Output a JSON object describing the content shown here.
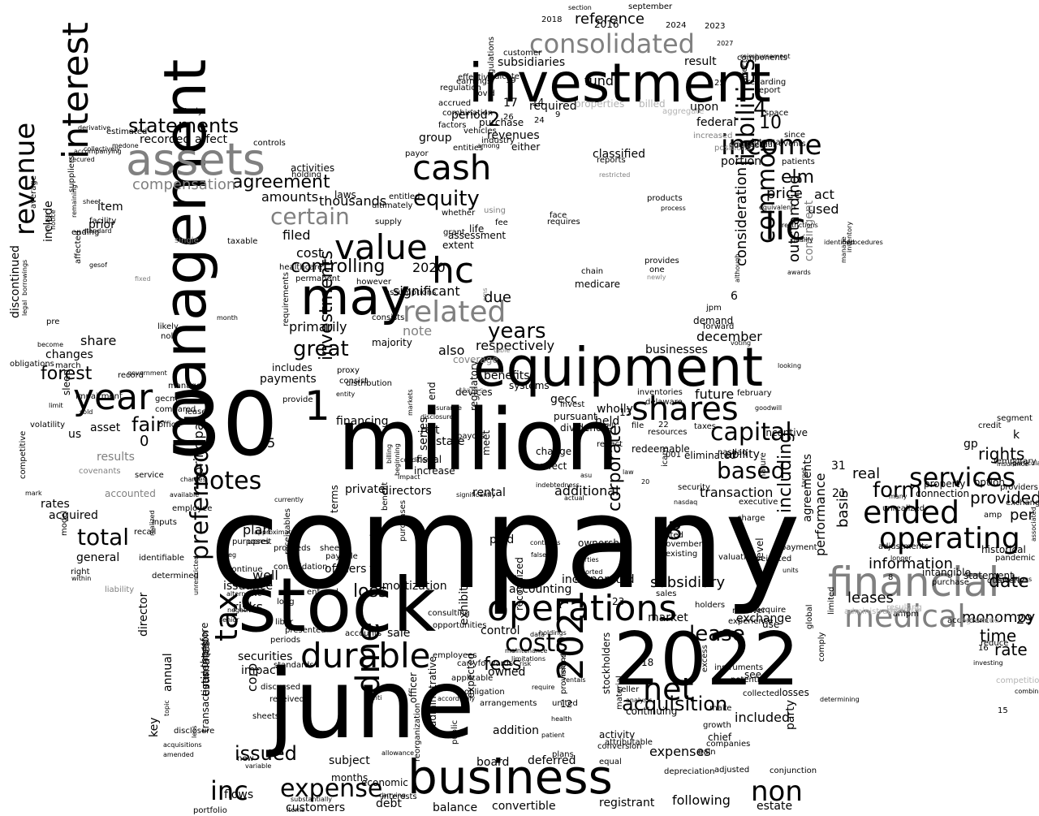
{
  "colors": {
    "background": "#ffffff",
    "primary": "#000000",
    "secondary": "#808080",
    "light": "#b3b3b3"
  },
  "words": [
    "company",
    "june",
    "million",
    "30",
    "2022",
    "stock",
    "management",
    "investment",
    "equipment",
    "business",
    "may",
    "assets",
    "consolidated",
    "financial",
    "medical",
    "operations",
    "durable",
    "cash",
    "value",
    "interest",
    "year",
    "llc",
    "shares",
    "operating",
    "ended",
    "services",
    "net",
    "income",
    "revenue",
    "hc",
    "capital",
    "tax",
    "notes",
    "inc",
    "expense",
    "non",
    "costs",
    "total",
    "related",
    "certain",
    "preferred",
    "equity",
    "liabilities",
    "common",
    "dme",
    "2021",
    "1",
    "3",
    "5",
    "0",
    "2",
    "4",
    "10",
    "statements",
    "agreement",
    "controlling",
    "great",
    "years",
    "fees",
    "lease",
    "acquisition",
    "subsidiary",
    "issued",
    "loss",
    "corp",
    "investments",
    "including",
    "corporate",
    "elm",
    "forest",
    "fair",
    "based",
    "form",
    "information",
    "date",
    "time",
    "rate",
    "monomoy",
    "29",
    "provided",
    "rights",
    "per",
    "leases",
    "real",
    "price",
    "act",
    "used",
    "outstanding",
    "consideration",
    "contingent",
    "amounts",
    "cost",
    "filed",
    "primarily",
    "also",
    "due",
    "significant",
    "note",
    "respectively",
    "december",
    "businesses",
    "future",
    "held",
    "gecc",
    "benefits",
    "reit",
    "state",
    "series",
    "financing",
    "directors",
    "rental",
    "private",
    "additional",
    "transaction",
    "ability",
    "performance",
    "basis",
    "agreements",
    "included",
    "expenses",
    "following",
    "estate",
    "balance",
    "board",
    "deferred",
    "convertible",
    "registrant",
    "customers",
    "debt",
    "subject",
    "addition",
    "flows",
    "securities",
    "impact",
    "risks",
    "issuance",
    "plan",
    "well",
    "principal",
    "acquired",
    "rates",
    "general",
    "results",
    "asset",
    "us",
    "payments",
    "includes",
    "changes",
    "share",
    "discontinued",
    "include",
    "item",
    "prior",
    "recorded",
    "affect",
    "thousands",
    "2020",
    "laws",
    "group",
    "revenues",
    "period",
    "required",
    "upon",
    "federal",
    "portion",
    "reference",
    "subsidiaries",
    "result",
    "september",
    "section",
    "incorporated",
    "market",
    "exchange",
    "use",
    "see",
    "losses",
    "party",
    "activity",
    "continuing",
    "stockholders",
    "accounting",
    "amortization",
    "sale",
    "control",
    "owned",
    "accounts",
    "employees",
    "exhibit",
    "recognized",
    "paid",
    "ownership",
    "effect",
    "change",
    "dividends",
    "pursuant",
    "wholly",
    "redeemable",
    "dated",
    "existing",
    "valuation",
    "incentive",
    "segment",
    "credit",
    "gp",
    "k",
    "connection",
    "property",
    "option",
    "statement",
    "historical",
    "intangible",
    "purchase",
    "industry",
    "fiscal",
    "increase",
    "meet",
    "regulatory",
    "officers",
    "terms",
    "compensation",
    "activities",
    "holding",
    "controls",
    "estimated",
    "study",
    "suppliers",
    "facility",
    "average",
    "ending",
    "march",
    "obligations",
    "fixed",
    "single",
    "taxable",
    "likely",
    "nol",
    "month",
    "pre",
    "become",
    "affected",
    "record",
    "impairment",
    "sleep",
    "gecm",
    "compared",
    "leased",
    "office",
    "sold",
    "covenants",
    "accounted",
    "liability",
    "right",
    "within",
    "model",
    "inputs",
    "recall",
    "identifiable",
    "realized",
    "employee",
    "upreit",
    "geg",
    "consolidation",
    "receivables",
    "sheet",
    "payable",
    "entered",
    "long",
    "libor",
    "presented",
    "periods",
    "standards",
    "discussed",
    "received",
    "sheets",
    "new",
    "variable",
    "key",
    "annual",
    "director",
    "therefore",
    "disclosure",
    "estimates",
    "transactions",
    "redemption",
    "portfolio",
    "months",
    "interests",
    "economic",
    "reorganization",
    "administrative",
    "officer",
    "public",
    "expected",
    "obligation",
    "applicable",
    "carryforwards",
    "arrangements",
    "opportunities",
    "consulting",
    "incurred",
    "benefit",
    "purchases",
    "majority",
    "consists",
    "assumptions",
    "however",
    "permanent",
    "healthcare",
    "volatility",
    "competitive",
    "service",
    "determined",
    "continue",
    "proceeds",
    "purposes",
    "provide",
    "currently",
    "approximately",
    "requirements",
    "government",
    "manager",
    "entity",
    "proxy",
    "consist",
    "distribution",
    "end",
    "devices",
    "coverage",
    "table",
    "states",
    "systems",
    "payors",
    "disclosures",
    "assurance",
    "markets",
    "condition",
    "beginning",
    "billing",
    "assessment",
    "extent",
    "grant",
    "life",
    "ultimately",
    "whether",
    "using",
    "entitled",
    "supply",
    "payor",
    "among",
    "entities",
    "combination",
    "earnings",
    "regulation",
    "accrued",
    "covid",
    "vehicles",
    "factors",
    "effective",
    "indicate",
    "customer",
    "regulations",
    "fee",
    "either",
    "fund",
    "23",
    "18",
    "12",
    "6",
    "15",
    "16",
    "17",
    "14",
    "19",
    "25",
    "31",
    "26",
    "24",
    "21",
    "9",
    "8",
    "7",
    "13",
    "001",
    "22",
    "2016",
    "2018",
    "2023",
    "2024",
    "2027",
    "reimbursement",
    "components",
    "regarding",
    "report",
    "space",
    "since",
    "patients",
    "internal",
    "events",
    "contractual",
    "increased",
    "positions",
    "defined",
    "direct",
    "properties",
    "billed",
    "aggregate",
    "classified",
    "reports",
    "restricted",
    "products",
    "process",
    "face",
    "requires",
    "chain",
    "medicare",
    "provides",
    "one",
    "newly",
    "jpm",
    "forward",
    "demand",
    "voting",
    "looking",
    "february",
    "goodwill",
    "inventories",
    "invest",
    "delaware",
    "sell",
    "file",
    "resources",
    "taxes",
    "eliminated",
    "nasdaq",
    "icam",
    "reflect",
    "security",
    "november",
    "law",
    "sales",
    "holders",
    "executive",
    "nature",
    "charge",
    "payment",
    "units",
    "level",
    "experience",
    "revolver",
    "acquire",
    "collected",
    "potential",
    "instruments",
    "make",
    "chief",
    "growth",
    "companies",
    "excess",
    "gain",
    "depreciation",
    "adjusted",
    "equal",
    "conversion",
    "attributable",
    "material",
    "seller",
    "analysis",
    "united",
    "provisions",
    "plans",
    "health",
    "patient",
    "method",
    "require",
    "rentals",
    "accordingly",
    "maintenance",
    "limitations",
    "risk",
    "holdings",
    "reported",
    "third",
    "parties",
    "contracts",
    "false",
    "data",
    "exchanged",
    "providers",
    "amp",
    "ampm",
    "purchase",
    "quarterly",
    "pandemic",
    "temporary",
    "unrealized",
    "accordance",
    "registered",
    "personnel",
    "competition",
    "resulting",
    "administration",
    "investing",
    "combinations",
    "associated",
    "insurance",
    "adjustments",
    "longer",
    "many",
    "reduce",
    "particular",
    "conditions",
    "determining",
    "conjunction",
    "limited",
    "global",
    "comply",
    "weighted",
    "target",
    "although",
    "procedures",
    "inventory",
    "identified",
    "restrictions",
    "qualify",
    "equivalents",
    "awards",
    "manage",
    "mark",
    "limit",
    "available",
    "charges",
    "unrestricted",
    "less",
    "topic",
    "amended",
    "acquisitions",
    "substantially",
    "items",
    "carrying",
    "anti",
    "allowance",
    "alternative",
    "negatively",
    "senior",
    "borrowings",
    "legal",
    "cause",
    "notice",
    "remaining",
    "sheet",
    "secured",
    "accompanying",
    "collectively",
    "derivative",
    "significantly",
    "indebtedness",
    "actual",
    "asu",
    "20",
    "nasdaq",
    "gesof",
    "medone",
    "standard",
    "cms",
    "impact",
    "private",
    "geggl",
    "recourse",
    "amount",
    "unit"
  ]
}
